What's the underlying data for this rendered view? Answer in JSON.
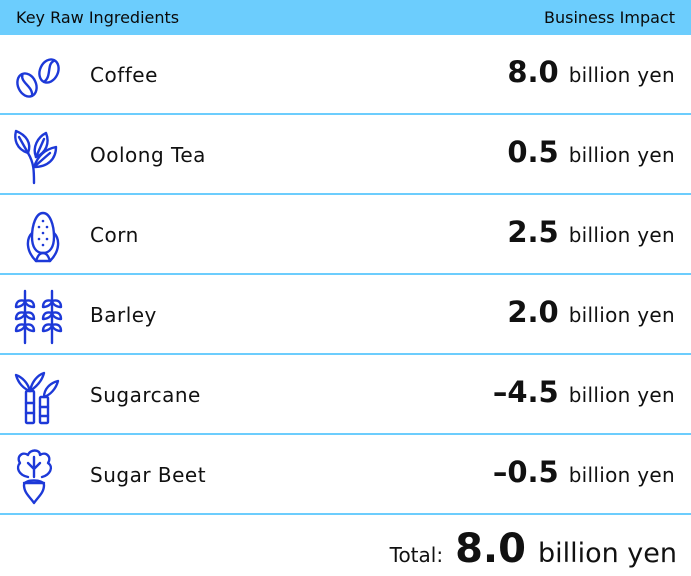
{
  "header": {
    "left_label": "Key Raw Ingredients",
    "right_label": "Business Impact"
  },
  "rows": [
    {
      "name": "Coffee",
      "value": "8.0",
      "unit": "billion yen",
      "icon": "coffee-beans-icon"
    },
    {
      "name": "Oolong Tea",
      "value": "0.5",
      "unit": "billion yen",
      "icon": "tea-leaves-icon"
    },
    {
      "name": "Corn",
      "value": "2.5",
      "unit": "billion yen",
      "icon": "corn-icon"
    },
    {
      "name": "Barley",
      "value": "2.0",
      "unit": "billion yen",
      "icon": "barley-icon"
    },
    {
      "name": "Sugarcane",
      "value": "–4.5",
      "unit": "billion yen",
      "icon": "sugarcane-icon"
    },
    {
      "name": "Sugar Beet",
      "value": "–0.5",
      "unit": "billion yen",
      "icon": "sugar-beet-icon"
    }
  ],
  "total": {
    "label": "Total:",
    "value": "8.0",
    "unit": "billion yen"
  },
  "colors": {
    "accent": "#6ccdfd",
    "icon": "#1d39d8"
  }
}
